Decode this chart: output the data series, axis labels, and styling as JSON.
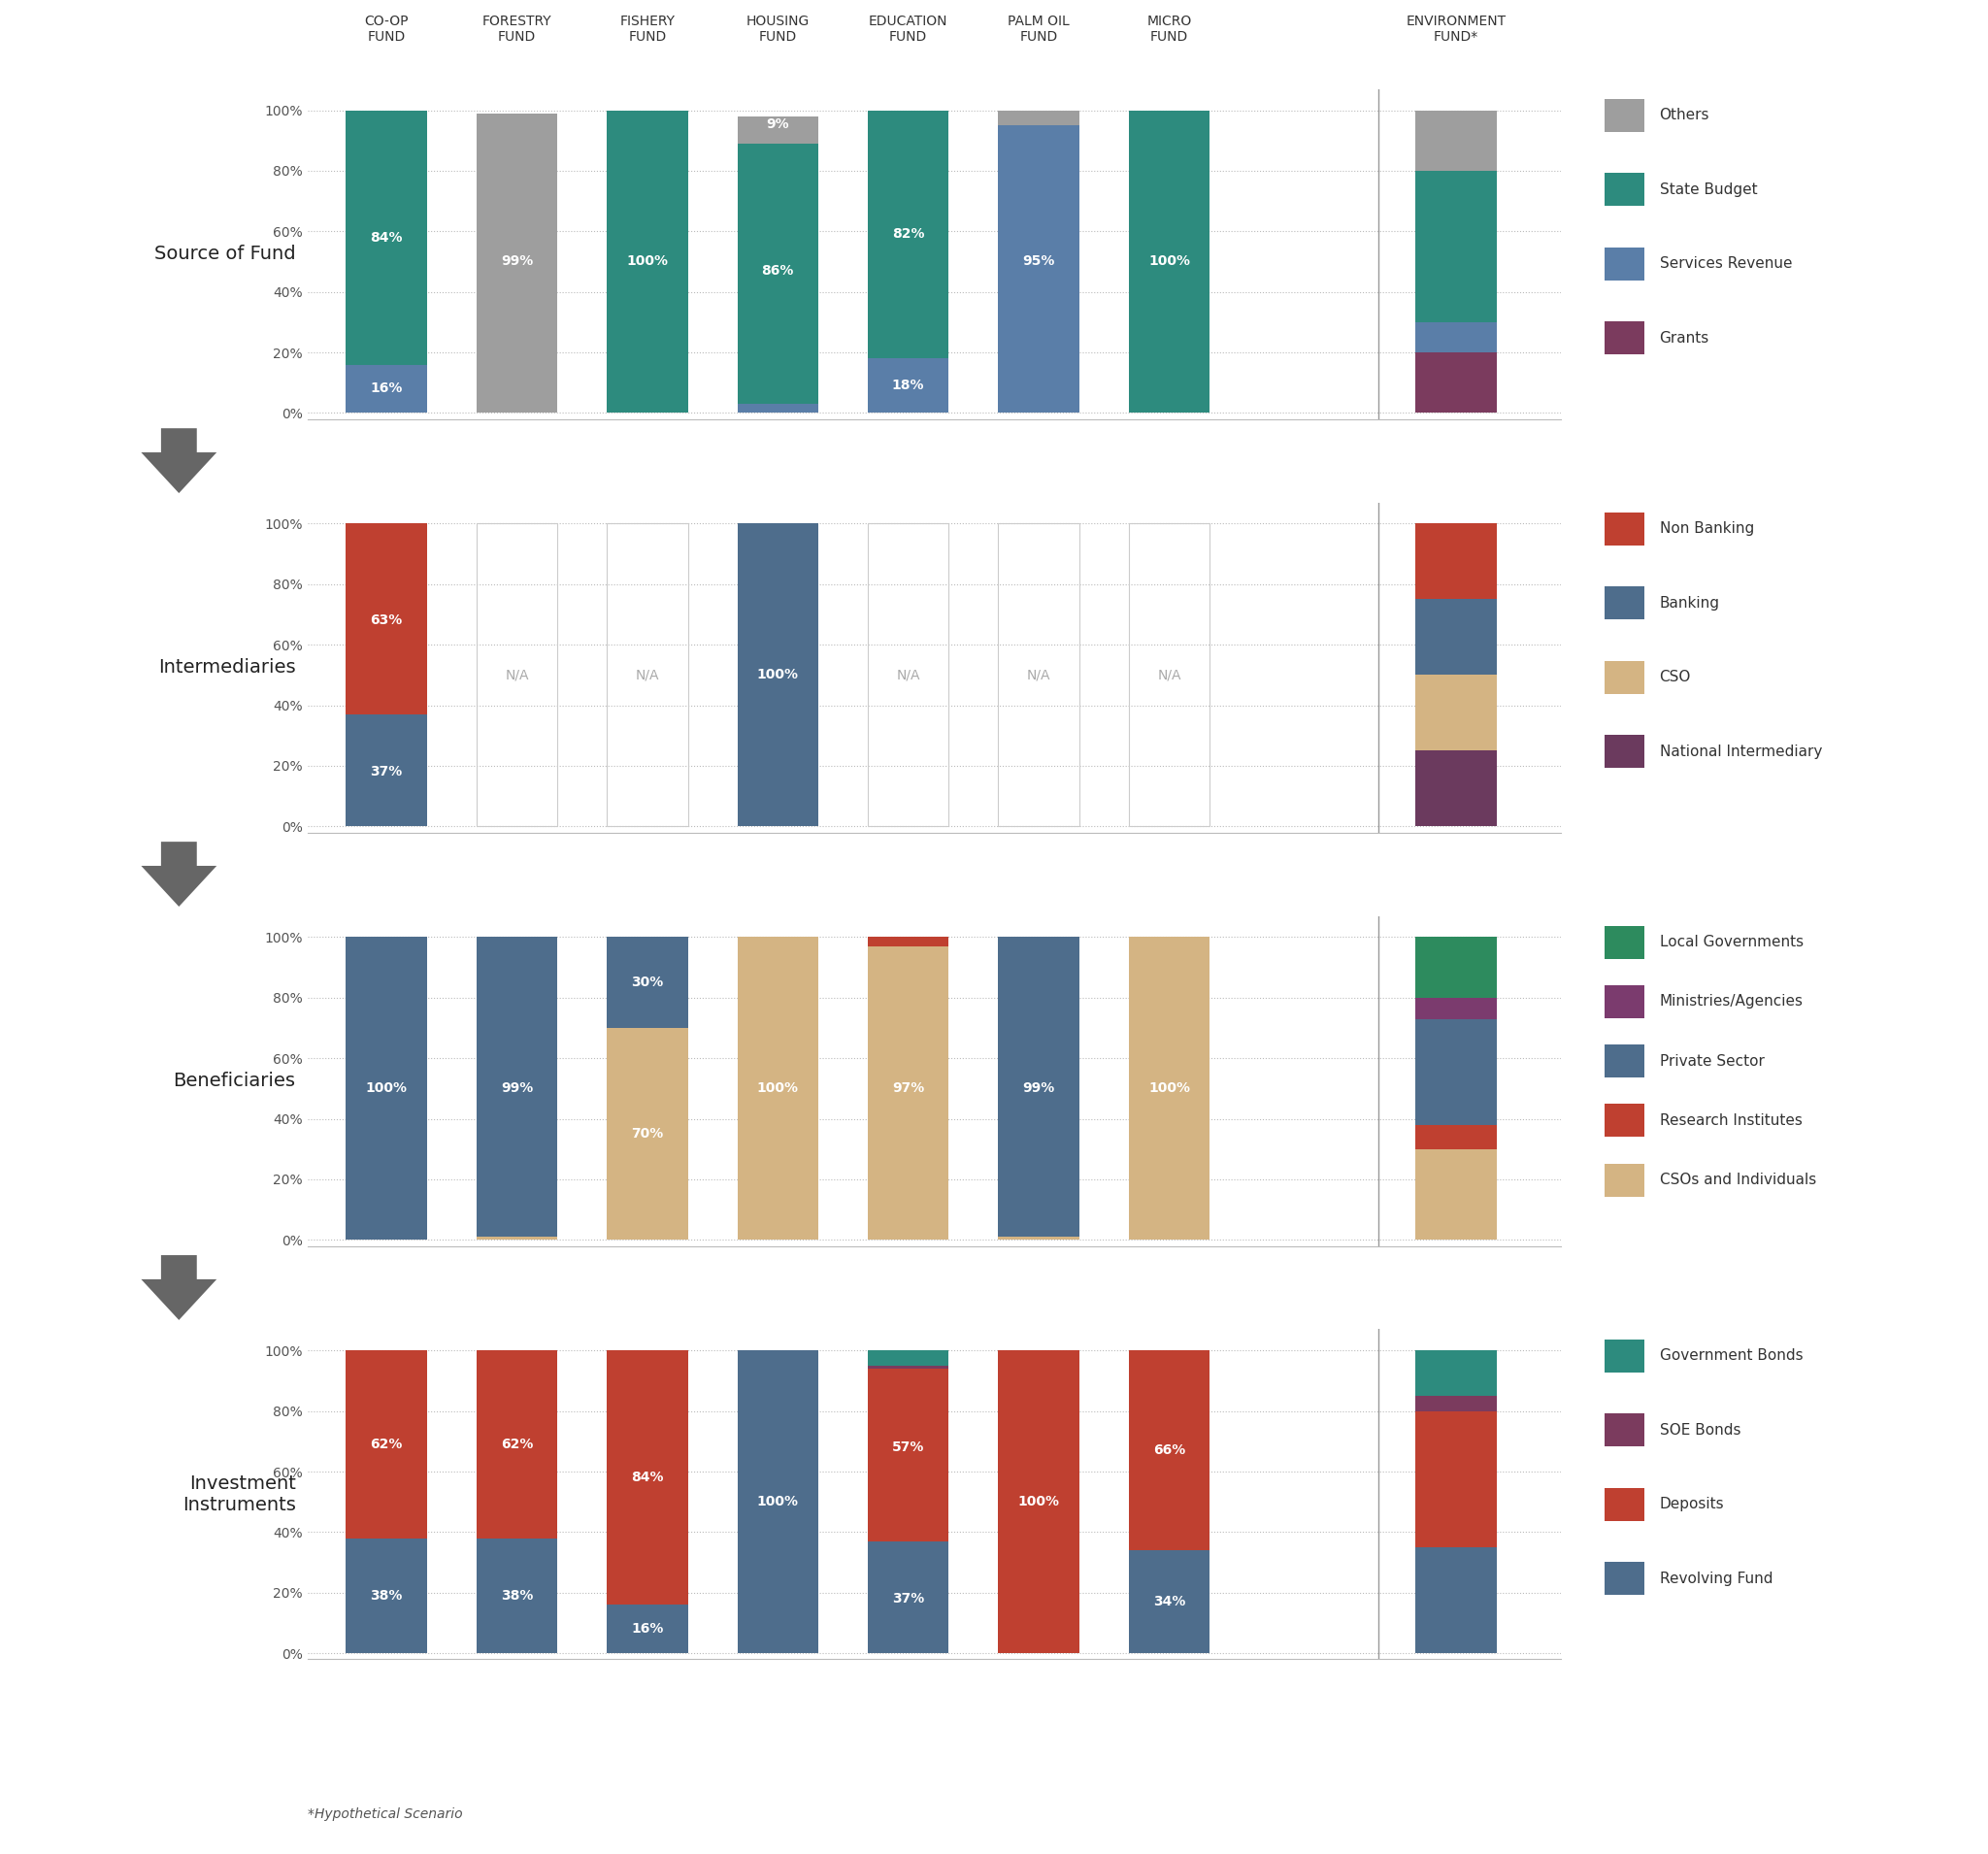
{
  "bg_color": "#ffffff",
  "fig_bg": "#f7f6f0",
  "col_headers": [
    "CO-OP\nFUND",
    "FORESTRY\nFUND",
    "FISHERY\nFUND",
    "HOUSING\nFUND",
    "EDUCATION\nFUND",
    "PALM OIL\nFUND",
    "MICRO\nFUND",
    "ENVIRONMENT\nFUND*"
  ],
  "sections": [
    {
      "title": "Source of Fund",
      "legend_items": [
        {
          "label": "Others",
          "color": "#9e9e9e"
        },
        {
          "label": "State Budget",
          "color": "#2d8b7e"
        },
        {
          "label": "Services Revenue",
          "color": "#5a7ea8"
        },
        {
          "label": "Grants",
          "color": "#7b3b5e"
        }
      ],
      "colors_bt": [
        "#7b3b5e",
        "#5a7ea8",
        "#2d8b7e",
        "#9e9e9e"
      ],
      "bars": [
        {
          "values": [
            0,
            16,
            84,
            0
          ],
          "labels": [
            {
              "text": "16%",
              "y": 8
            },
            {
              "text": "84%",
              "y": 58
            }
          ]
        },
        {
          "values": [
            0,
            0,
            0,
            99
          ],
          "labels": [
            {
              "text": "99%",
              "y": 50
            }
          ]
        },
        {
          "values": [
            0,
            0,
            100,
            0
          ],
          "labels": [
            {
              "text": "100%",
              "y": 50
            }
          ]
        },
        {
          "values": [
            0,
            3,
            86,
            9
          ],
          "labels": [
            {
              "text": "9%",
              "y": 95.5
            },
            {
              "text": "86%",
              "y": 47
            }
          ]
        },
        {
          "values": [
            0,
            18,
            82,
            0
          ],
          "labels": [
            {
              "text": "82%",
              "y": 59
            },
            {
              "text": "18%",
              "y": 9
            }
          ]
        },
        {
          "values": [
            0,
            95,
            0,
            5
          ],
          "labels": [
            {
              "text": "95%",
              "y": 50
            }
          ]
        },
        {
          "values": [
            0,
            0,
            100,
            0
          ],
          "labels": [
            {
              "text": "100%",
              "y": 50
            }
          ]
        }
      ],
      "env_bar": {
        "values": [
          20,
          10,
          50,
          20
        ]
      }
    },
    {
      "title": "Intermediaries",
      "legend_items": [
        {
          "label": "Non Banking",
          "color": "#bf4030"
        },
        {
          "label": "Banking",
          "color": "#4e6d8c"
        },
        {
          "label": "CSO",
          "color": "#d4b483"
        },
        {
          "label": "National Intermediary",
          "color": "#6b3a5e"
        }
      ],
      "colors_bt": [
        "#6b3a5e",
        "#d4b483",
        "#4e6d8c",
        "#bf4030"
      ],
      "bars": [
        {
          "values": [
            0,
            0,
            37,
            63
          ],
          "labels": [
            {
              "text": "37%",
              "y": 18
            },
            {
              "text": "63%",
              "y": 68
            }
          ]
        },
        {
          "values": null,
          "labels": [
            {
              "text": "N/A",
              "y": 50,
              "na": true
            }
          ]
        },
        {
          "values": null,
          "labels": [
            {
              "text": "N/A",
              "y": 50,
              "na": true
            }
          ]
        },
        {
          "values": [
            0,
            0,
            100,
            0
          ],
          "labels": [
            {
              "text": "100%",
              "y": 50
            }
          ]
        },
        {
          "values": null,
          "labels": [
            {
              "text": "N/A",
              "y": 50,
              "na": true
            }
          ]
        },
        {
          "values": null,
          "labels": [
            {
              "text": "N/A",
              "y": 50,
              "na": true
            }
          ]
        },
        {
          "values": null,
          "labels": [
            {
              "text": "N/A",
              "y": 50,
              "na": true
            }
          ]
        }
      ],
      "env_bar": {
        "values": [
          25,
          25,
          25,
          25
        ]
      }
    },
    {
      "title": "Beneficiaries",
      "legend_items": [
        {
          "label": "Local Governments",
          "color": "#2d8b5e"
        },
        {
          "label": "Ministries/Agencies",
          "color": "#7b3b6e"
        },
        {
          "label": "Private Sector",
          "color": "#4e6d8c"
        },
        {
          "label": "Research Institutes",
          "color": "#bf4030"
        },
        {
          "label": "CSOs and Individuals",
          "color": "#d4b483"
        }
      ],
      "colors_bt": [
        "#d4b483",
        "#bf4030",
        "#4e6d8c",
        "#7b3b6e",
        "#2d8b5e"
      ],
      "bars": [
        {
          "values": [
            0,
            0,
            100,
            0,
            0
          ],
          "labels": [
            {
              "text": "100%",
              "y": 50
            }
          ]
        },
        {
          "values": [
            1,
            0,
            99,
            0,
            0
          ],
          "labels": [
            {
              "text": "99%",
              "y": 50
            }
          ]
        },
        {
          "values": [
            70,
            0,
            30,
            0,
            0
          ],
          "labels": [
            {
              "text": "70%",
              "y": 35
            },
            {
              "text": "30%",
              "y": 85
            }
          ]
        },
        {
          "values": [
            100,
            0,
            0,
            0,
            0
          ],
          "labels": [
            {
              "text": "100%",
              "y": 50
            }
          ]
        },
        {
          "values": [
            97,
            3,
            0,
            0,
            0
          ],
          "labels": [
            {
              "text": "97%",
              "y": 50
            }
          ]
        },
        {
          "values": [
            1,
            0,
            99,
            0,
            0
          ],
          "labels": [
            {
              "text": "99%",
              "y": 50
            }
          ]
        },
        {
          "values": [
            100,
            0,
            0,
            0,
            0
          ],
          "labels": [
            {
              "text": "100%",
              "y": 50
            }
          ]
        }
      ],
      "env_bar": {
        "values": [
          30,
          8,
          35,
          7,
          20
        ]
      }
    },
    {
      "title": "Investment\nInstruments",
      "legend_items": [
        {
          "label": "Government Bonds",
          "color": "#2d8b7e"
        },
        {
          "label": "SOE Bonds",
          "color": "#7b3b5e"
        },
        {
          "label": "Deposits",
          "color": "#bf4030"
        },
        {
          "label": "Revolving Fund",
          "color": "#4e6d8c"
        }
      ],
      "colors_bt": [
        "#4e6d8c",
        "#bf4030",
        "#7b3b5e",
        "#2d8b7e"
      ],
      "bars": [
        {
          "values": [
            38,
            62,
            0,
            0
          ],
          "labels": [
            {
              "text": "38%",
              "y": 19
            },
            {
              "text": "62%",
              "y": 69
            }
          ]
        },
        {
          "values": [
            38,
            62,
            0,
            0
          ],
          "labels": [
            {
              "text": "38%",
              "y": 19
            },
            {
              "text": "62%",
              "y": 69
            }
          ]
        },
        {
          "values": [
            16,
            84,
            0,
            0
          ],
          "labels": [
            {
              "text": "16%",
              "y": 8
            },
            {
              "text": "84%",
              "y": 58
            }
          ]
        },
        {
          "values": [
            100,
            0,
            0,
            0
          ],
          "labels": [
            {
              "text": "100%",
              "y": 50
            }
          ]
        },
        {
          "values": [
            37,
            57,
            1,
            5
          ],
          "labels": [
            {
              "text": "37%",
              "y": 18
            },
            {
              "text": "57%",
              "y": 68
            }
          ]
        },
        {
          "values": [
            0,
            100,
            0,
            0
          ],
          "labels": [
            {
              "text": "100%",
              "y": 50
            }
          ]
        },
        {
          "values": [
            34,
            66,
            0,
            0
          ],
          "labels": [
            {
              "text": "34%",
              "y": 17
            },
            {
              "text": "66%",
              "y": 67
            }
          ]
        }
      ],
      "env_bar": {
        "values": [
          35,
          45,
          5,
          15
        ]
      }
    }
  ]
}
